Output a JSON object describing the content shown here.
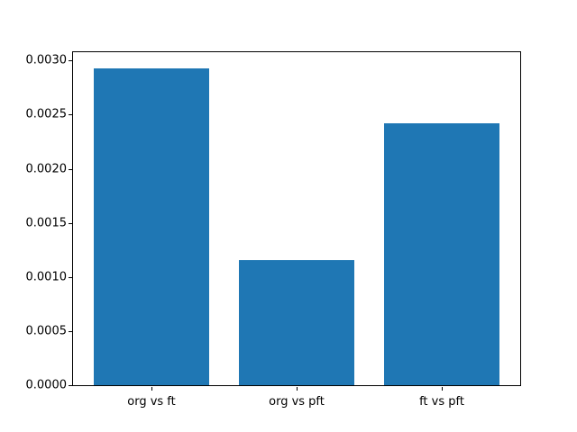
{
  "chart_data": {
    "type": "bar",
    "title": "",
    "xlabel": "",
    "ylabel": "",
    "categories": [
      "org vs ft",
      "org vs pft",
      "ft vs pft"
    ],
    "values": [
      0.00293,
      0.00116,
      0.00242
    ],
    "ylim": [
      0,
      0.0030765
    ],
    "yticks": [
      0.0,
      0.0005,
      0.001,
      0.0015,
      0.002,
      0.0025,
      0.003
    ],
    "ytick_labels": [
      "0.0000",
      "0.0005",
      "0.0010",
      "0.0015",
      "0.0020",
      "0.0025",
      "0.0030"
    ],
    "bar_width_fraction": 0.8,
    "x_margin": 0.54,
    "legend_shown": false,
    "grid_shown": false,
    "colors": {
      "bar": "#1f77b4",
      "spine": "#000000",
      "tick_text": "#000000",
      "background": "#ffffff"
    }
  }
}
